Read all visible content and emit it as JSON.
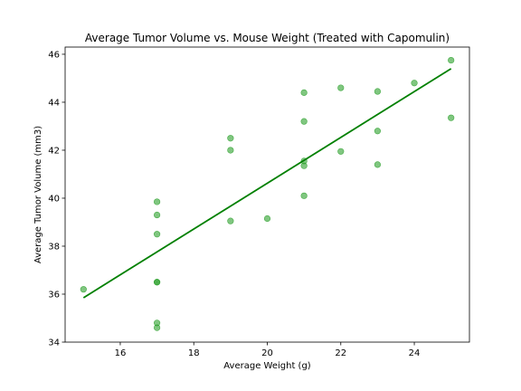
{
  "chart_data": {
    "type": "scatter",
    "title": "Average Tumor Volume vs. Mouse Weight (Treated with Capomulin)",
    "xlabel": "Average Weight (g)",
    "ylabel": "Average Tumor Volume (mm3)",
    "xlim": [
      14.5,
      25.5
    ],
    "ylim": [
      34,
      46.3
    ],
    "xticks": [
      16,
      18,
      20,
      22,
      24
    ],
    "yticks": [
      34,
      36,
      38,
      40,
      42,
      44,
      46
    ],
    "grid": false,
    "legend": "none",
    "point_color": "#2ca02c",
    "line_color": "#008000",
    "points": [
      {
        "x": 15,
        "y": 36.2
      },
      {
        "x": 17,
        "y": 34.6
      },
      {
        "x": 17,
        "y": 34.8
      },
      {
        "x": 17,
        "y": 36.5
      },
      {
        "x": 17,
        "y": 36.5
      },
      {
        "x": 17,
        "y": 38.5
      },
      {
        "x": 17,
        "y": 39.3
      },
      {
        "x": 17,
        "y": 39.85
      },
      {
        "x": 19,
        "y": 39.05
      },
      {
        "x": 19,
        "y": 42.0
      },
      {
        "x": 19,
        "y": 42.5
      },
      {
        "x": 20,
        "y": 39.15
      },
      {
        "x": 21,
        "y": 40.1
      },
      {
        "x": 21,
        "y": 41.35
      },
      {
        "x": 21,
        "y": 41.55
      },
      {
        "x": 21,
        "y": 43.2
      },
      {
        "x": 21,
        "y": 44.4
      },
      {
        "x": 22,
        "y": 41.95
      },
      {
        "x": 22,
        "y": 44.6
      },
      {
        "x": 23,
        "y": 41.4
      },
      {
        "x": 23,
        "y": 42.8
      },
      {
        "x": 23,
        "y": 44.45
      },
      {
        "x": 24,
        "y": 44.8
      },
      {
        "x": 25,
        "y": 43.35
      },
      {
        "x": 25,
        "y": 45.75
      }
    ],
    "regression_line": {
      "x": [
        15,
        25
      ],
      "y": [
        35.85,
        45.4
      ]
    }
  }
}
